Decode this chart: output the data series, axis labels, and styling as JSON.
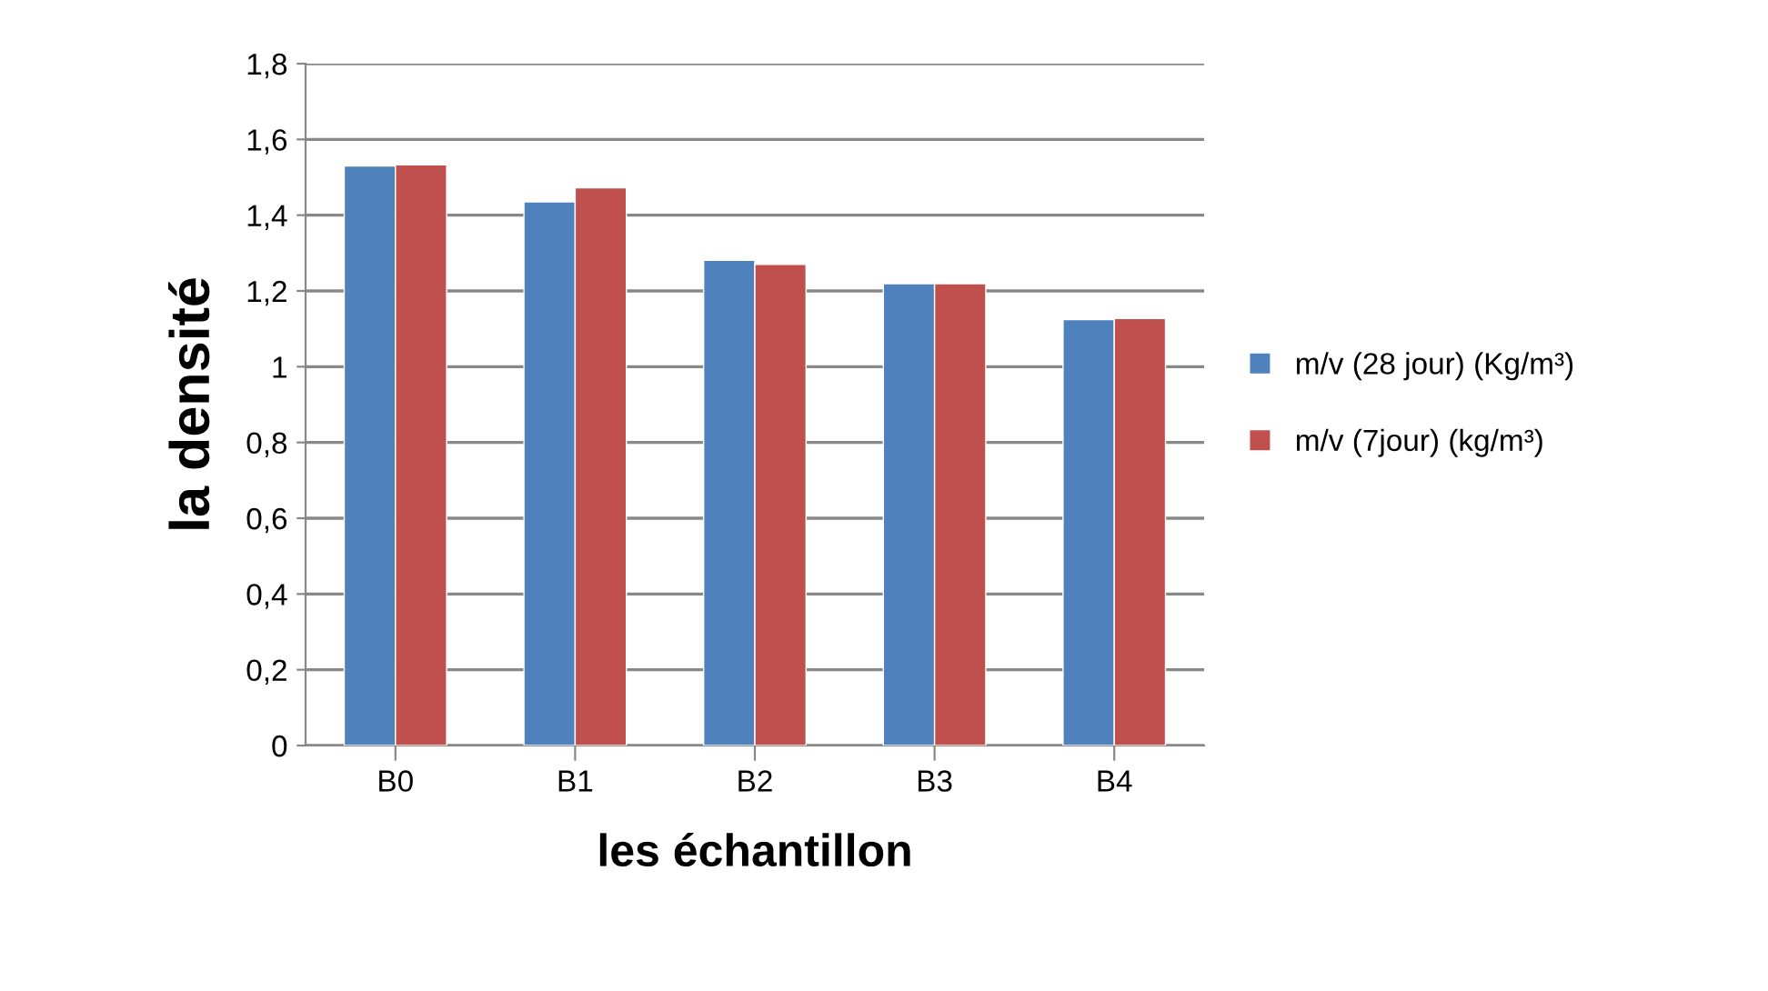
{
  "chart_data": {
    "type": "bar",
    "xlabel": "les échantillon",
    "ylabel": "la densité",
    "categories": [
      "B0",
      "B1",
      "B2",
      "B3",
      "B4"
    ],
    "series": [
      {
        "name": "m/v (28 jour) (Kg/m³)",
        "color": "#4f81bd",
        "values": [
          1.53,
          1.435,
          1.281,
          1.219,
          1.124
        ]
      },
      {
        "name": "m/v (7jour) (kg/m³)",
        "color": "#c0504d",
        "values": [
          1.533,
          1.472,
          1.27,
          1.219,
          1.127
        ]
      }
    ],
    "ylim": [
      0,
      1.8
    ],
    "yticks": [
      0,
      {
        "value": 0.2,
        "label": "0,2"
      },
      {
        "value": 0.4,
        "label": "0,4"
      },
      {
        "value": 0.6,
        "label": "0,6"
      },
      {
        "value": 0.8,
        "label": "0,8"
      },
      1,
      {
        "value": 1.2,
        "label": "1,2"
      },
      {
        "value": 1.4,
        "label": "1,4"
      },
      {
        "value": 1.6,
        "label": "1,6"
      },
      {
        "value": 1.8,
        "label": "1,8"
      }
    ],
    "grid": "y",
    "legend": "right"
  }
}
